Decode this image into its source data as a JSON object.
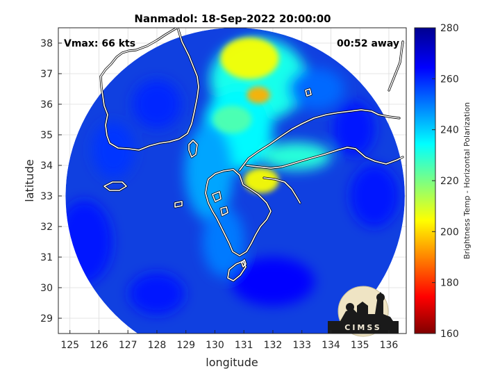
{
  "chart_data": {
    "type": "heatmap",
    "title": "Nanmadol: 18-Sep-2022 20:00:00",
    "xlabel": "longitude",
    "ylabel": "latitude",
    "xlim": [
      124.6,
      136.6
    ],
    "ylim": [
      28.5,
      38.5
    ],
    "x_ticks": [
      "125",
      "126",
      "127",
      "128",
      "129",
      "130",
      "131",
      "132",
      "133",
      "134",
      "135",
      "136"
    ],
    "y_ticks": [
      "29",
      "30",
      "31",
      "32",
      "33",
      "34",
      "35",
      "36",
      "37",
      "38"
    ],
    "grid": true,
    "annotation_left": "Vmax: 66 kts",
    "annotation_right": "00:52 away",
    "swath_center": [
      130.7,
      33.0
    ],
    "swath_radius_deg": [
      5.85,
      5.5
    ],
    "colorbar": {
      "label": "Brightness Temp - Horizontal Polarization",
      "min": 160,
      "max": 280,
      "ticks": [
        "280",
        "260",
        "240",
        "220",
        "200",
        "180",
        "160"
      ]
    },
    "features": [
      {
        "name": "storm-core",
        "lon": 131.6,
        "lat": 33.5,
        "value": 205
      },
      {
        "name": "northern-band",
        "lon": 131.2,
        "lat": 37.5,
        "value": 205
      },
      {
        "name": "hot-spot",
        "lon": 131.5,
        "lat": 36.3,
        "value": 195
      },
      {
        "name": "rain-arm",
        "lon": 130.6,
        "lat": 35.5,
        "value": 225
      }
    ]
  },
  "logo": {
    "text": "CIMSS"
  }
}
